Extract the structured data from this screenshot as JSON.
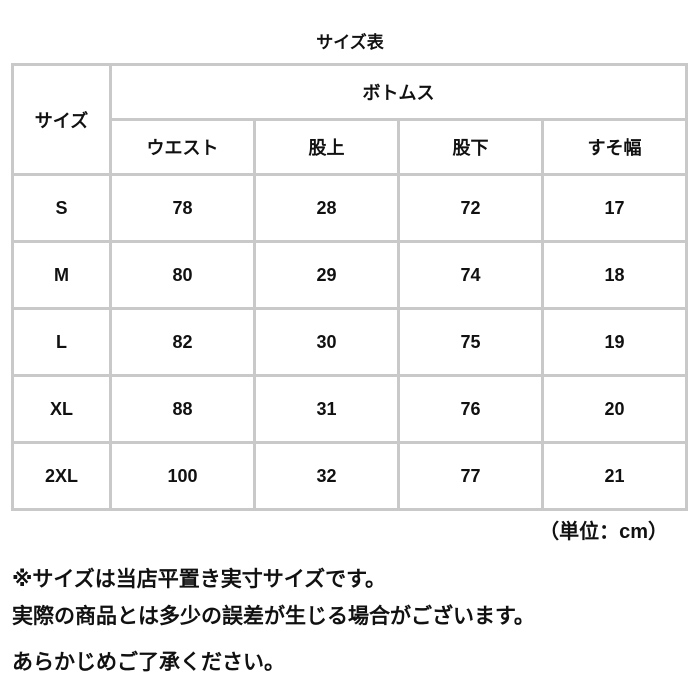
{
  "title": "サイズ表",
  "table": {
    "size_header": "サイズ",
    "group_header": "ボトムス",
    "columns": [
      "ウエスト",
      "股上",
      "股下",
      "すそ幅"
    ],
    "rows": [
      {
        "size": "S",
        "values": [
          "78",
          "28",
          "72",
          "17"
        ]
      },
      {
        "size": "M",
        "values": [
          "80",
          "29",
          "74",
          "18"
        ]
      },
      {
        "size": "L",
        "values": [
          "82",
          "30",
          "75",
          "19"
        ]
      },
      {
        "size": "XL",
        "values": [
          "88",
          "31",
          "76",
          "20"
        ]
      },
      {
        "size": "2XL",
        "values": [
          "100",
          "32",
          "77",
          "21"
        ]
      }
    ]
  },
  "unit": "（単位：cm）",
  "notes": [
    "※サイズは当店平置き実寸サイズです。",
    "実際の商品とは多少の誤差が生じる場合がございます。",
    "あらかじめご了承ください。"
  ]
}
